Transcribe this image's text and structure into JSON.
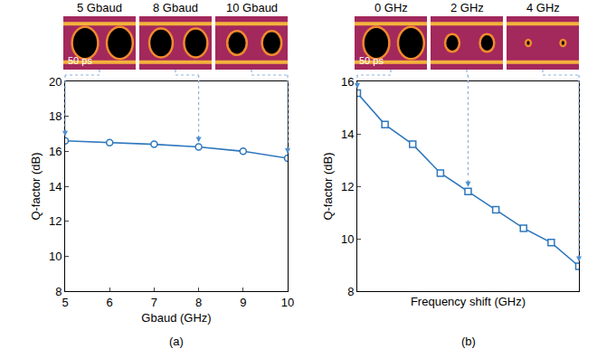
{
  "chart_data": [
    {
      "type": "line",
      "panel_label": "(a)",
      "x": [
        5,
        6,
        7,
        8,
        9,
        10
      ],
      "values": [
        16.6,
        16.5,
        16.4,
        16.25,
        16.0,
        15.6
      ],
      "color": "#2f78bd",
      "marker": "circle-open",
      "line_style": "solid",
      "xlim": [
        5,
        10
      ],
      "xticks": [
        5,
        6,
        7,
        8,
        9,
        10
      ],
      "ylim": [
        8,
        20
      ],
      "yticks": [
        8,
        10,
        12,
        14,
        16,
        18,
        20
      ],
      "x_label": "Gbaud (GHz)",
      "y_label": "Q-factor (dB)",
      "grid": false,
      "tick_labels": true,
      "insets": [
        {
          "label": "5 Gbaud",
          "x": 5
        },
        {
          "label": "8 Gbaud",
          "x": 8
        },
        {
          "label": "10 Gbaud",
          "x": 10
        }
      ],
      "scale_label": "50 ps"
    },
    {
      "type": "line",
      "panel_label": "(b)",
      "x": [
        0,
        0.5,
        1,
        1.5,
        2,
        2.5,
        3,
        3.5,
        4
      ],
      "values": [
        15.55,
        14.35,
        13.6,
        12.5,
        11.8,
        11.1,
        10.4,
        9.85,
        8.95
      ],
      "color": "#2f78bd",
      "marker": "square-open",
      "line_style": "solid",
      "xlim": [
        0,
        4
      ],
      "ylim": [
        8,
        16
      ],
      "yticks": [
        8,
        10,
        12,
        14,
        16
      ],
      "x_label": "Frequency shift (GHz)",
      "y_label": "Q-factor (dB)",
      "grid": false,
      "tick_labels": "y",
      "insets": [
        {
          "label": "0 GHz",
          "x": 0
        },
        {
          "label": "2 GHz",
          "x": 2
        },
        {
          "label": "4 GHz",
          "x": 4
        }
      ],
      "scale_label": "50 ps"
    }
  ]
}
